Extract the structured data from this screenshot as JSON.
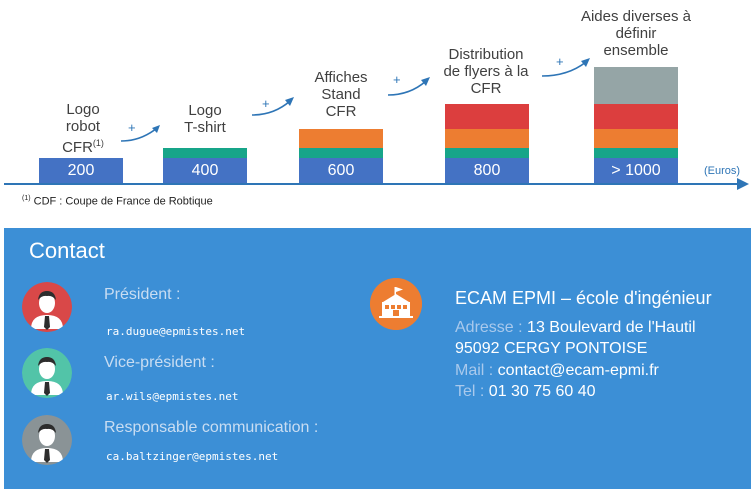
{
  "tiers": [
    {
      "label_lines": [
        "Logo",
        "robot",
        "CFR"
      ],
      "label_sup": "(1)",
      "price": "200",
      "segments": [
        "#4472c4"
      ]
    },
    {
      "label_lines": [
        "Logo",
        "T-shirt"
      ],
      "price": "400",
      "segments": [
        "#17a589"
      ]
    },
    {
      "label_lines": [
        "Affiches",
        "Stand",
        "CFR"
      ],
      "price": "600",
      "segments": [
        "#ed7d31",
        "#17a589"
      ]
    },
    {
      "label_lines": [
        "Distribution",
        "de flyers à la",
        "CFR"
      ],
      "price": "800",
      "segments": [
        "#dc3e3e",
        "#ed7d31",
        "#17a589"
      ]
    },
    {
      "label_lines": [
        "Aides diverses à",
        "définir",
        "ensemble"
      ],
      "price": "> 1000",
      "segments": [
        "#95a5a6",
        "#dc3e3e",
        "#ed7d31",
        "#17a589"
      ]
    }
  ],
  "plus_sign": "+",
  "axis_unit": "(Euros)",
  "footnote": {
    "marker": "(1)",
    "text": " CDF : Coupe de France de Robtique"
  },
  "contact": {
    "title": "Contact",
    "people": [
      {
        "role": "Président :",
        "email": "ra.dugue@epmistes.net",
        "avatar_color": "#d94848",
        "tie_color": "#d94848"
      },
      {
        "role": "Vice-président :",
        "email": "ar.wils@epmistes.net",
        "avatar_color": "#52c4a8",
        "tie_color": "#52c4a8"
      },
      {
        "role": "Responsable communication :",
        "email": "ca.baltzinger@epmistes.net",
        "avatar_color": "#8a9396",
        "tie_color": "#8a9396"
      }
    ],
    "school": {
      "name": "ECAM EPMI – école d'ingénieur",
      "address_key": "Adresse :",
      "address_line1": " 13 Boulevard de l'Hautil",
      "address_line2": "95092 CERGY PONTOISE",
      "mail_key": "Mail :",
      "mail_value": " contact@ecam-epmi.fr",
      "tel_key": "Tel :",
      "tel_value": " 01 30 75 60 40"
    }
  }
}
